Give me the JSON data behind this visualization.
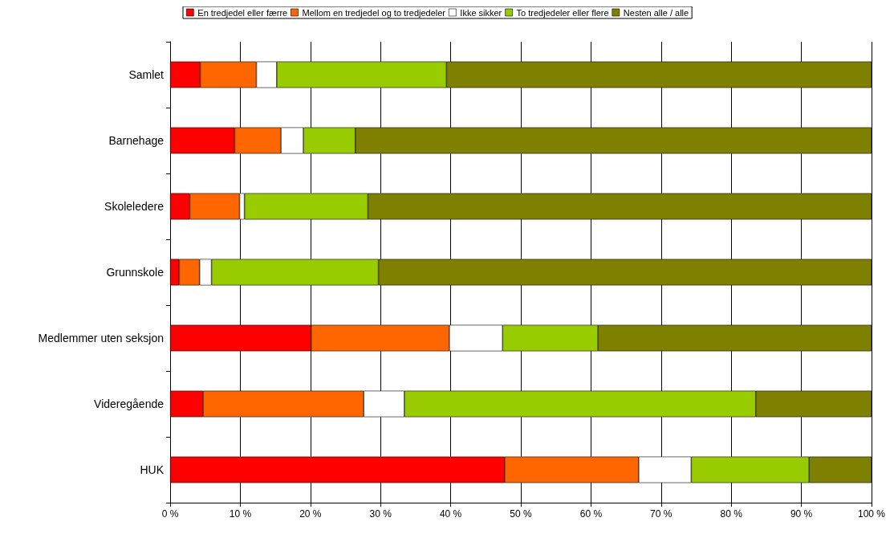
{
  "chart_data": {
    "type": "bar",
    "orientation": "horizontal",
    "stacked": true,
    "categories": [
      "Samlet",
      "Barnehage",
      "Skoleledere",
      "Grunnskole",
      "Medlemmer uten seksjon",
      "Videregående",
      "HUK"
    ],
    "series": [
      {
        "name": "En tredjedel eller færre",
        "color": "#ff0000",
        "values": [
          4.3,
          9.2,
          2.8,
          1.3,
          20.1,
          4.7,
          47.7
        ]
      },
      {
        "name": "Mellom en tredjedel og to tredjedeler",
        "color": "#ff6600",
        "values": [
          8.0,
          6.6,
          7.1,
          2.9,
          19.7,
          22.9,
          19.1
        ]
      },
      {
        "name": "Ikke sikker",
        "color": "#ffffff",
        "values": [
          2.9,
          3.2,
          0.7,
          1.7,
          7.6,
          5.8,
          7.5
        ]
      },
      {
        "name": "To tredjedeler eller flere",
        "color": "#99cc00",
        "values": [
          24.2,
          7.4,
          17.6,
          23.8,
          13.6,
          50.1,
          16.8
        ]
      },
      {
        "name": "Nesten alle / alle",
        "color": "#808000",
        "values": [
          60.6,
          73.6,
          71.8,
          70.3,
          39.0,
          16.5,
          8.9
        ]
      }
    ],
    "xlim": [
      0,
      100
    ],
    "xticks": [
      {
        "value": 0,
        "label": "0 %"
      },
      {
        "value": 10,
        "label": "10 %"
      },
      {
        "value": 20,
        "label": "20 %"
      },
      {
        "value": 30,
        "label": "30 %"
      },
      {
        "value": 40,
        "label": "40 %"
      },
      {
        "value": 50,
        "label": "50 %"
      },
      {
        "value": 60,
        "label": "60 %"
      },
      {
        "value": 70,
        "label": "70 %"
      },
      {
        "value": 80,
        "label": "80 %"
      },
      {
        "value": 90,
        "label": "90 %"
      },
      {
        "value": 100,
        "label": "100 %"
      }
    ],
    "grid": "x",
    "legend": "top"
  }
}
